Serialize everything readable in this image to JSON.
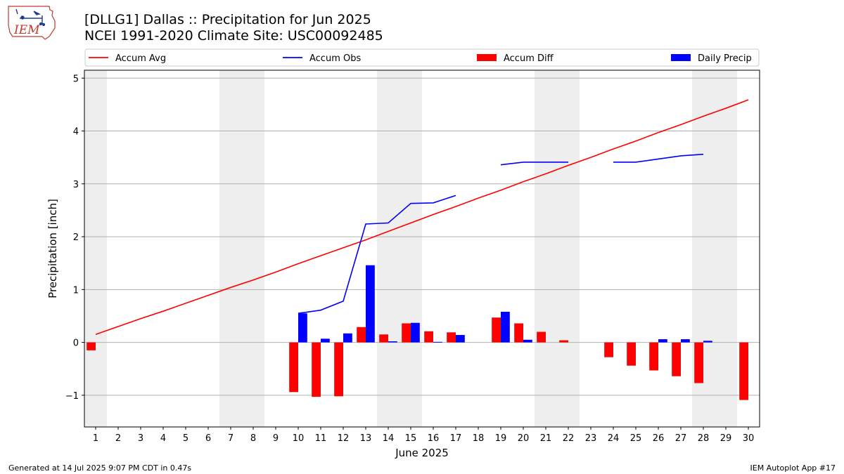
{
  "header": {
    "title_line1": "[DLLG1] Dallas :: Precipitation for Jun 2025",
    "title_line2": "NCEI 1991-2020 Climate Site: USC00092485",
    "logo_text": "IEM"
  },
  "footer": {
    "generated": "Generated at 14 Jul 2025 9:07 PM CDT in 0.47s",
    "app": "IEM Autoplot App #17"
  },
  "colors": {
    "avg": "#ff0000",
    "obs": "#0000ff",
    "diff": "#ff0000",
    "daily": "#0000ff",
    "weekend_shade": "#eeeeee",
    "grid": "#b0b0b0"
  },
  "chart_data": {
    "type": "bar",
    "xlabel": "June 2025",
    "ylabel": "Precipitation [inch]",
    "xlim": [
      0.5,
      30.5
    ],
    "ylim": [
      -1.6,
      5.15
    ],
    "yticks": [
      -1,
      0,
      1,
      2,
      3,
      4,
      5
    ],
    "ytick_labels": [
      "−1",
      "0",
      "1",
      "2",
      "3",
      "4",
      "5"
    ],
    "days": [
      1,
      2,
      3,
      4,
      5,
      6,
      7,
      8,
      9,
      10,
      11,
      12,
      13,
      14,
      15,
      16,
      17,
      18,
      19,
      20,
      21,
      22,
      23,
      24,
      25,
      26,
      27,
      28,
      29,
      30
    ],
    "weekend_shaded_days": [
      1,
      7,
      8,
      14,
      15,
      21,
      22,
      28,
      29
    ],
    "grid": "horizontal",
    "legend": {
      "placement": "top",
      "entries": [
        {
          "label": "Accum Avg",
          "kind": "line",
          "color": "#ff0000"
        },
        {
          "label": "Accum Obs",
          "kind": "line",
          "color": "#0000ff"
        },
        {
          "label": "Accum Diff",
          "kind": "bar",
          "color": "#ff0000"
        },
        {
          "label": "Daily Precip",
          "kind": "bar",
          "color": "#0000ff"
        }
      ]
    },
    "series": [
      {
        "name": "Accum Avg",
        "type": "line",
        "values": [
          0.15,
          0.3,
          0.45,
          0.59,
          0.74,
          0.89,
          1.04,
          1.18,
          1.33,
          1.49,
          1.64,
          1.79,
          1.94,
          2.1,
          2.26,
          2.42,
          2.57,
          2.73,
          2.88,
          3.04,
          3.19,
          3.35,
          3.5,
          3.66,
          3.81,
          3.97,
          4.12,
          4.28,
          4.43,
          4.59
        ]
      },
      {
        "name": "Accum Obs",
        "type": "line",
        "values": [
          null,
          null,
          null,
          null,
          null,
          null,
          null,
          null,
          null,
          0.55,
          0.61,
          0.78,
          2.24,
          2.26,
          2.63,
          2.64,
          2.78,
          null,
          3.36,
          3.41,
          3.41,
          3.41,
          null,
          3.41,
          3.41,
          3.47,
          3.53,
          3.56,
          null,
          null
        ]
      },
      {
        "name": "Accum Diff",
        "type": "bar",
        "values": [
          -0.15,
          null,
          null,
          null,
          null,
          null,
          null,
          null,
          null,
          -0.94,
          -1.03,
          -1.02,
          0.29,
          0.15,
          0.36,
          0.21,
          0.19,
          null,
          0.47,
          0.36,
          0.2,
          0.04,
          null,
          -0.28,
          -0.44,
          -0.53,
          -0.64,
          -0.77,
          null,
          -1.09
        ]
      },
      {
        "name": "Daily Precip",
        "type": "bar",
        "values": [
          null,
          null,
          null,
          null,
          null,
          null,
          null,
          null,
          null,
          0.55,
          0.07,
          0.17,
          1.46,
          0.02,
          0.37,
          0.01,
          0.14,
          null,
          0.58,
          0.05,
          null,
          null,
          null,
          null,
          null,
          0.06,
          0.06,
          0.03,
          null,
          null
        ]
      }
    ]
  }
}
